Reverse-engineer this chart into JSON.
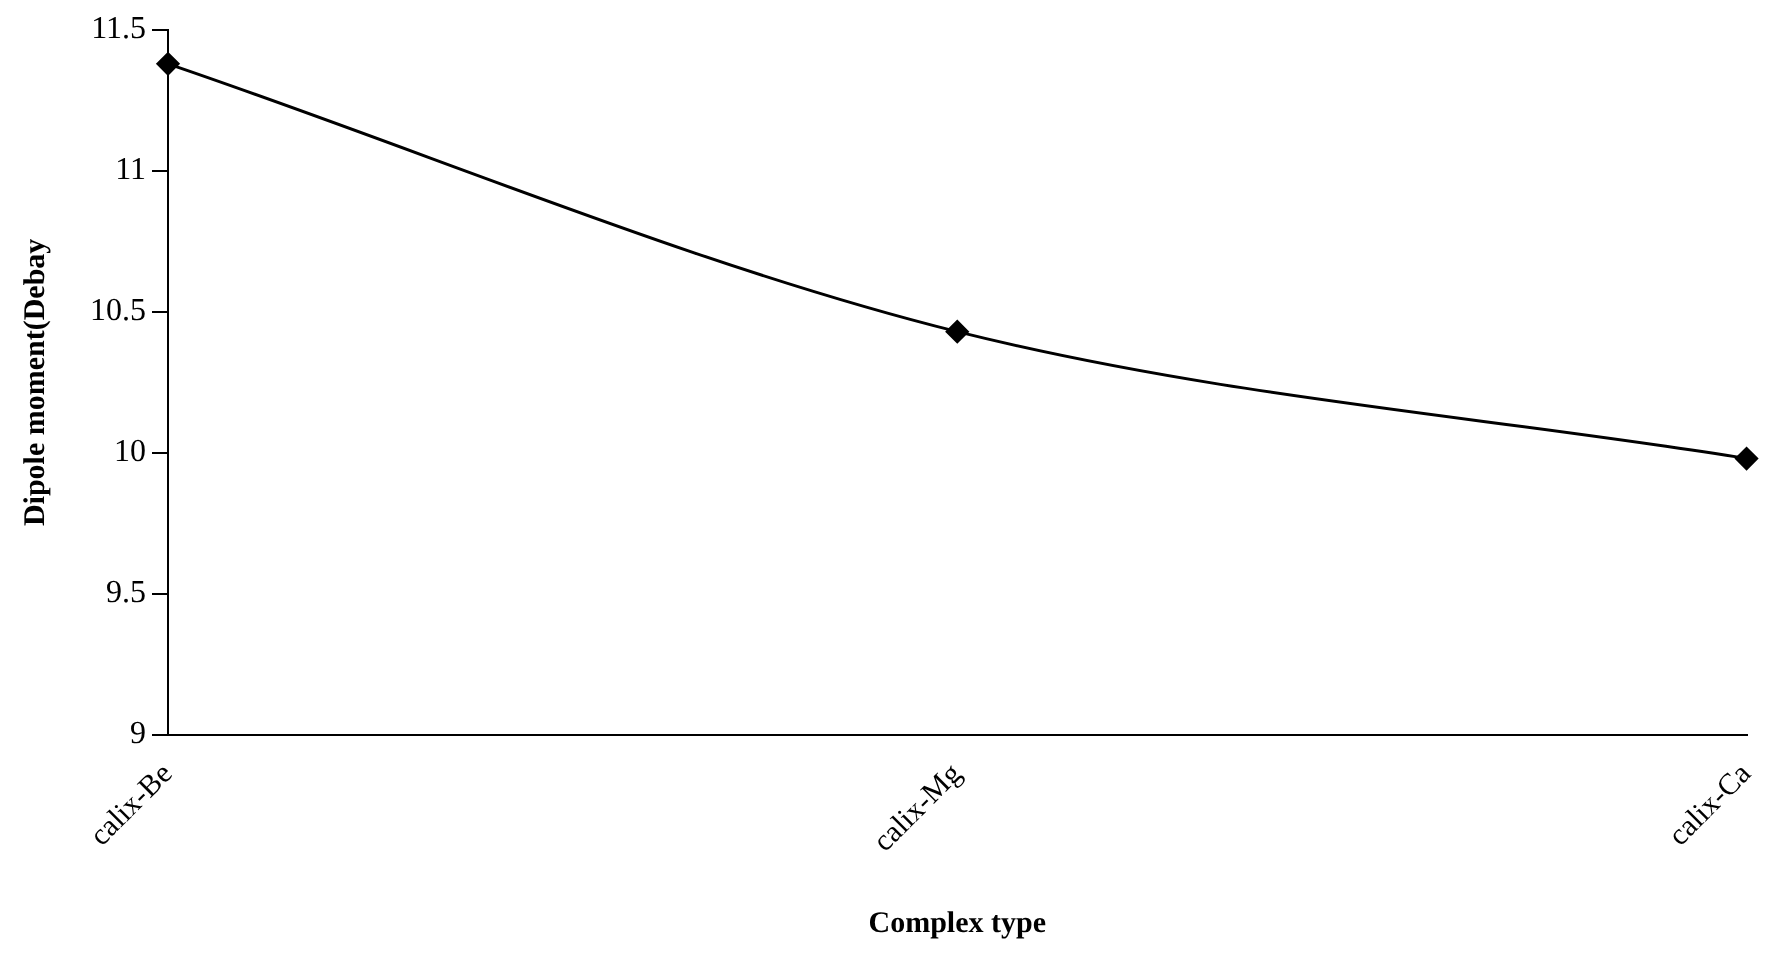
{
  "chart_data": {
    "type": "line",
    "xlabel": "Complex type",
    "ylabel": "Dipole moment(Debay",
    "categories": [
      "calix-Be",
      "calix-Mg",
      "calix-Ca"
    ],
    "series": [
      {
        "color": "#000000",
        "values": [
          11.38,
          10.43,
          9.98
        ]
      }
    ],
    "ylim": [
      9,
      11.5
    ],
    "yticks": [
      9,
      9.5,
      10,
      10.5,
      11,
      11.5
    ],
    "grid": false,
    "legend": false,
    "marker": "diamond",
    "line_style": "solid"
  }
}
